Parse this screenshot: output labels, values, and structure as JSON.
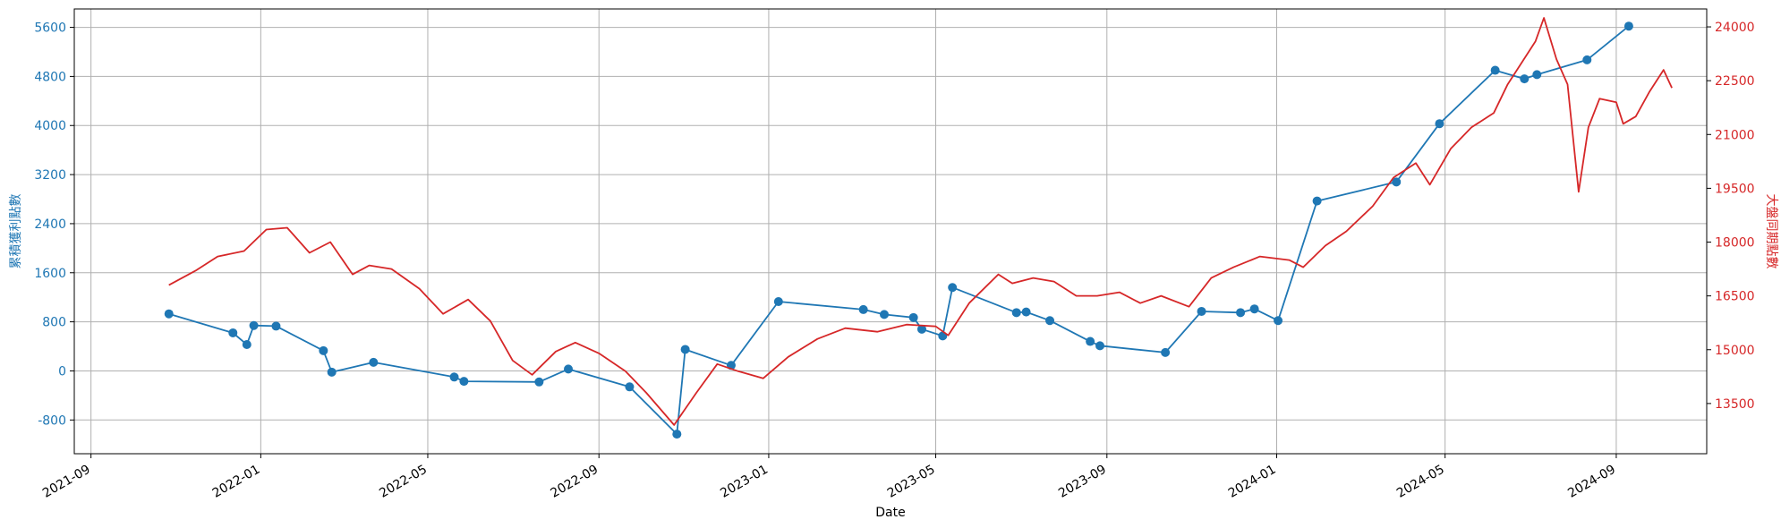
{
  "chart_data": {
    "type": "line",
    "title": "",
    "xlabel": "Date",
    "x_ticks": [
      "2021-09",
      "2022-01",
      "2022-05",
      "2022-09",
      "2023-01",
      "2023-05",
      "2023-09",
      "2024-01",
      "2024-05",
      "2024-09"
    ],
    "xlim": [
      "2021-08-20",
      "2024-11-05"
    ],
    "grid": true,
    "y_left": {
      "label": "累積獲利點數",
      "ticks": [
        -800,
        0,
        800,
        1600,
        2400,
        3200,
        4000,
        4800,
        5600
      ],
      "ylim": [
        -1350,
        5900
      ],
      "color": "#1f77b4"
    },
    "y_right": {
      "label": "大盤同期點數",
      "ticks": [
        13500,
        15000,
        16500,
        18000,
        19500,
        21000,
        22500,
        24000
      ],
      "ylim": [
        12100,
        24500
      ],
      "color": "#d62728"
    },
    "series": [
      {
        "axis": "left",
        "style": "line+marker",
        "color": "#1f77b4",
        "points": [
          [
            "2021-10-27",
            930
          ],
          [
            "2021-12-12",
            620
          ],
          [
            "2021-12-22",
            430
          ],
          [
            "2021-12-27",
            740
          ],
          [
            "2022-01-12",
            730
          ],
          [
            "2022-02-15",
            330
          ],
          [
            "2022-02-21",
            -20
          ],
          [
            "2022-03-23",
            140
          ],
          [
            "2022-05-20",
            -100
          ],
          [
            "2022-05-27",
            -170
          ],
          [
            "2022-07-20",
            -180
          ],
          [
            "2022-08-10",
            30
          ],
          [
            "2022-09-23",
            -260
          ],
          [
            "2022-10-27",
            -1030
          ],
          [
            "2022-11-02",
            350
          ],
          [
            "2022-12-05",
            90
          ],
          [
            "2023-01-08",
            1130
          ],
          [
            "2023-03-10",
            1000
          ],
          [
            "2023-03-25",
            920
          ],
          [
            "2023-04-15",
            870
          ],
          [
            "2023-04-21",
            680
          ],
          [
            "2023-05-06",
            570
          ],
          [
            "2023-05-13",
            1360
          ],
          [
            "2023-06-28",
            950
          ],
          [
            "2023-07-05",
            960
          ],
          [
            "2023-07-22",
            820
          ],
          [
            "2023-08-20",
            480
          ],
          [
            "2023-08-27",
            410
          ],
          [
            "2023-10-13",
            300
          ],
          [
            "2023-11-08",
            970
          ],
          [
            "2023-12-06",
            950
          ],
          [
            "2023-12-16",
            1010
          ],
          [
            "2024-01-02",
            820
          ],
          [
            "2024-01-30",
            2770
          ],
          [
            "2024-03-27",
            3080
          ],
          [
            "2024-04-27",
            4030
          ],
          [
            "2024-06-06",
            4900
          ],
          [
            "2024-06-27",
            4760
          ],
          [
            "2024-07-06",
            4830
          ],
          [
            "2024-08-11",
            5070
          ],
          [
            "2024-09-10",
            5620
          ]
        ]
      },
      {
        "axis": "right",
        "style": "line",
        "color": "#d62728",
        "points": [
          [
            "2021-10-27",
            16800
          ],
          [
            "2021-11-15",
            17200
          ],
          [
            "2021-12-01",
            17600
          ],
          [
            "2021-12-20",
            17750
          ],
          [
            "2022-01-05",
            18350
          ],
          [
            "2022-01-20",
            18400
          ],
          [
            "2022-02-05",
            17700
          ],
          [
            "2022-02-20",
            18000
          ],
          [
            "2022-03-08",
            17100
          ],
          [
            "2022-03-20",
            17350
          ],
          [
            "2022-04-05",
            17250
          ],
          [
            "2022-04-25",
            16700
          ],
          [
            "2022-05-12",
            16000
          ],
          [
            "2022-05-30",
            16400
          ],
          [
            "2022-06-15",
            15800
          ],
          [
            "2022-07-01",
            14700
          ],
          [
            "2022-07-15",
            14300
          ],
          [
            "2022-08-01",
            14950
          ],
          [
            "2022-08-15",
            15200
          ],
          [
            "2022-09-01",
            14900
          ],
          [
            "2022-09-20",
            14400
          ],
          [
            "2022-10-05",
            13800
          ],
          [
            "2022-10-25",
            12900
          ],
          [
            "2022-11-10",
            13800
          ],
          [
            "2022-11-25",
            14600
          ],
          [
            "2022-12-10",
            14400
          ],
          [
            "2022-12-28",
            14200
          ],
          [
            "2023-01-15",
            14800
          ],
          [
            "2023-02-05",
            15300
          ],
          [
            "2023-02-25",
            15600
          ],
          [
            "2023-03-20",
            15500
          ],
          [
            "2023-04-10",
            15700
          ],
          [
            "2023-05-01",
            15650
          ],
          [
            "2023-05-10",
            15400
          ],
          [
            "2023-05-25",
            16300
          ],
          [
            "2023-06-15",
            17100
          ],
          [
            "2023-06-25",
            16850
          ],
          [
            "2023-07-10",
            17000
          ],
          [
            "2023-07-25",
            16900
          ],
          [
            "2023-08-10",
            16500
          ],
          [
            "2023-08-25",
            16500
          ],
          [
            "2023-09-10",
            16600
          ],
          [
            "2023-09-25",
            16300
          ],
          [
            "2023-10-10",
            16500
          ],
          [
            "2023-10-30",
            16200
          ],
          [
            "2023-11-15",
            17000
          ],
          [
            "2023-12-01",
            17300
          ],
          [
            "2023-12-20",
            17600
          ],
          [
            "2024-01-10",
            17500
          ],
          [
            "2024-01-20",
            17300
          ],
          [
            "2024-02-05",
            17900
          ],
          [
            "2024-02-20",
            18300
          ],
          [
            "2024-03-10",
            19000
          ],
          [
            "2024-03-25",
            19800
          ],
          [
            "2024-04-10",
            20200
          ],
          [
            "2024-04-20",
            19600
          ],
          [
            "2024-05-05",
            20600
          ],
          [
            "2024-05-20",
            21200
          ],
          [
            "2024-06-05",
            21600
          ],
          [
            "2024-06-15",
            22400
          ],
          [
            "2024-06-25",
            23000
          ],
          [
            "2024-07-05",
            23600
          ],
          [
            "2024-07-11",
            24250
          ],
          [
            "2024-07-20",
            23100
          ],
          [
            "2024-07-28",
            22400
          ],
          [
            "2024-08-05",
            19400
          ],
          [
            "2024-08-12",
            21200
          ],
          [
            "2024-08-20",
            22000
          ],
          [
            "2024-09-01",
            21900
          ],
          [
            "2024-09-06",
            21300
          ],
          [
            "2024-09-15",
            21500
          ],
          [
            "2024-09-25",
            22200
          ],
          [
            "2024-10-05",
            22800
          ],
          [
            "2024-10-11",
            22300
          ]
        ]
      }
    ]
  }
}
